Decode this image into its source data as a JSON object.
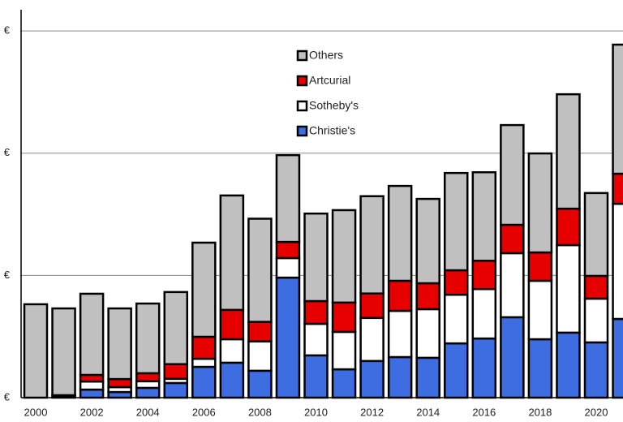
{
  "chart_data": {
    "type": "stacked-bar",
    "categories": [
      "2000",
      null,
      "2002",
      null,
      "2004",
      null,
      "2006",
      null,
      "2008",
      null,
      "2010",
      null,
      "2012",
      null,
      "2014",
      null,
      "2016",
      null,
      "2018",
      null,
      "2020",
      null
    ],
    "series": [
      {
        "name": "Christie's",
        "color": "#3d6de0",
        "values": [
          0,
          0.5,
          3.3,
          2.3,
          4,
          6,
          12.6,
          14.3,
          11,
          49.1,
          17.3,
          11.6,
          15,
          16.6,
          16.3,
          22.2,
          24.2,
          32.9,
          23.9,
          26.6,
          22.6,
          32.2
        ]
      },
      {
        "name": "Sotheby's",
        "color": "#ffffff",
        "values": [
          0,
          0.5,
          3.3,
          2,
          2.7,
          1.7,
          3.3,
          9.6,
          12,
          8,
          12.9,
          15.3,
          17.6,
          18.9,
          19.9,
          19.9,
          20.2,
          26.2,
          23.9,
          35.8,
          17.9,
          47.1
        ]
      },
      {
        "name": "Artcurial",
        "color": "#e60000",
        "values": [
          0,
          0,
          2.7,
          3.3,
          3.3,
          6,
          9,
          12,
          8,
          6.6,
          9.3,
          12,
          10,
          12.3,
          10.6,
          10,
          11.6,
          11.6,
          11.6,
          14.9,
          9.3,
          12.3
        ]
      },
      {
        "name": "Others",
        "color": "#c0c0c0",
        "values": [
          38.2,
          35.5,
          33.2,
          28.9,
          28.5,
          29.5,
          38.5,
          46.8,
          42.2,
          35.5,
          35.8,
          37.8,
          39.8,
          38.8,
          34.5,
          39.8,
          36.2,
          40.8,
          40.5,
          46.8,
          33.9,
          52.8
        ]
      }
    ],
    "ylim": [
      0,
      160
    ],
    "yticks": [
      {
        "value": 0,
        "label": "€"
      },
      {
        "value": 50,
        "label": "€"
      },
      {
        "value": 100,
        "label": "€"
      },
      {
        "value": 150,
        "label": "€"
      }
    ],
    "grid": true
  }
}
